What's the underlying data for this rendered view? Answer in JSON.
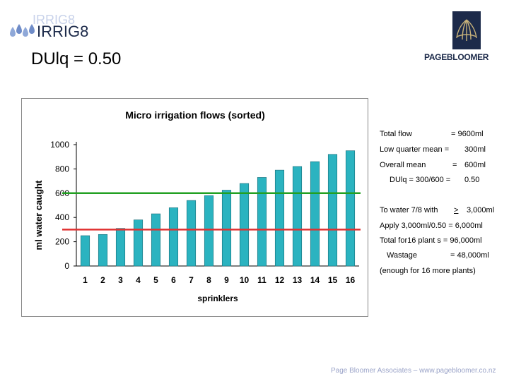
{
  "header": {
    "logo_text": "IRRIG8",
    "title": "DUlq = 0.50",
    "brand": "PAGEBLOOMER"
  },
  "chart_data": {
    "type": "bar",
    "title": "Micro irrigation flows (sorted)",
    "xlabel": "sprinklers",
    "ylabel": "ml water caught",
    "categories": [
      "1",
      "2",
      "3",
      "4",
      "5",
      "6",
      "7",
      "8",
      "9",
      "10",
      "11",
      "12",
      "13",
      "14",
      "15",
      "16"
    ],
    "values": [
      250,
      260,
      310,
      380,
      430,
      480,
      540,
      580,
      625,
      680,
      730,
      790,
      820,
      860,
      920,
      950
    ],
    "ylim": [
      0,
      1000
    ],
    "yticks": [
      0,
      200,
      400,
      600,
      800,
      1000
    ],
    "grid": false,
    "reference_lines": [
      {
        "value": 600,
        "color": "#22a022"
      },
      {
        "value": 300,
        "color": "#e03030"
      }
    ],
    "bar_color": "#2bb3c0"
  },
  "notes": {
    "total_flow_label": "Total flow",
    "total_flow_value": "=  9600ml",
    "low_quarter_label": "Low quarter mean =",
    "low_quarter_value": "300ml",
    "overall_label": "Overall mean",
    "overall_eq": "=",
    "overall_value": "600ml",
    "dulq_label": "DUlq = 300/600 =",
    "dulq_value": "0.50",
    "water_label": "To water 7/8 with",
    "water_op": ">",
    "water_value": "3,000ml",
    "apply_line": "Apply 3,000ml/0.50 =  6,000ml",
    "total16_line": "Total for16 plant s  = 96,000ml",
    "wastage_label": "Wastage",
    "wastage_value": "=  48,000ml",
    "enough_line": "(enough for 16 more plants)"
  },
  "footer": "Page Bloomer Associates – www.pagebloomer.co.nz"
}
